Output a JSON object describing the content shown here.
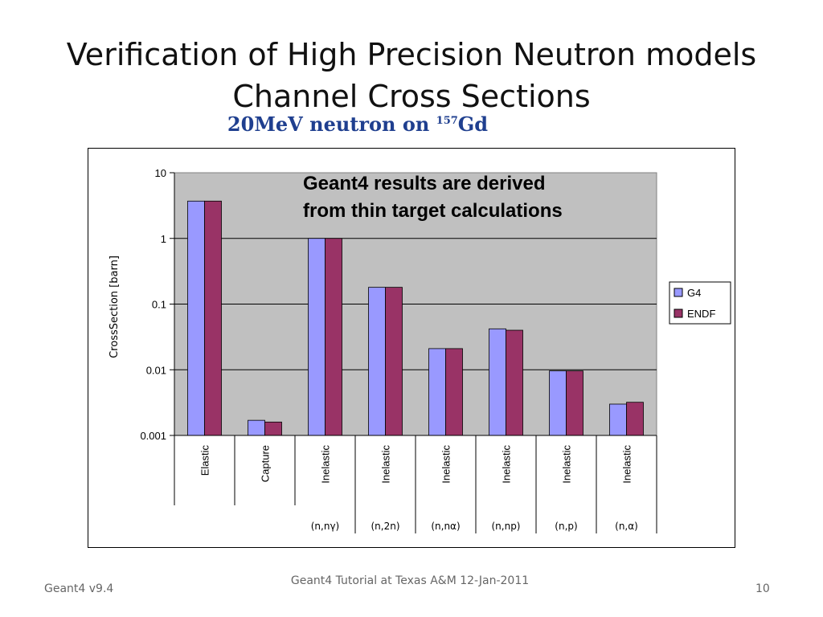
{
  "slide": {
    "title_line1": "Verification  of High Precision Neutron models",
    "title_line2": "Channel Cross Sections",
    "subtitle_pre": "20MeV neutron on ",
    "subtitle_sup": "157",
    "subtitle_post": "Gd",
    "footer_left": "Geant4 v9.4",
    "footer_center": "Geant4 Tutorial at Texas A&M 12-Jan-2011",
    "footer_right": "10"
  },
  "chart_data": {
    "type": "bar",
    "scale": "log",
    "ylim": [
      0.001,
      10
    ],
    "yticks": [
      "10",
      "1",
      "0.1",
      "0.01",
      "0.001"
    ],
    "ylabel": "CrossSection [barn]",
    "categories": [
      "Elastic",
      "Capture",
      "Inelastic",
      "Inelastic",
      "Inelastic",
      "Inelastic",
      "Inelastic",
      "Inelastic"
    ],
    "subcategories": [
      "",
      "",
      "(n,nγ)",
      "(n,2n)",
      "(n,nα)",
      "(n,np)",
      "(n,p)",
      "(n,α)"
    ],
    "series": [
      {
        "name": "G4",
        "color": "#9999ff",
        "values": [
          3.7,
          0.0017,
          1.0,
          0.18,
          0.021,
          0.042,
          0.0096,
          0.003
        ]
      },
      {
        "name": "ENDF",
        "color": "#993366",
        "values": [
          3.7,
          0.0016,
          1.0,
          0.18,
          0.021,
          0.04,
          0.0096,
          0.0032
        ]
      }
    ],
    "annotation_line1": "Geant4 results are derived",
    "annotation_line2": "from thin target calculations",
    "plot_background": "#c0c0c0",
    "grid": true,
    "legend_position": "right"
  }
}
